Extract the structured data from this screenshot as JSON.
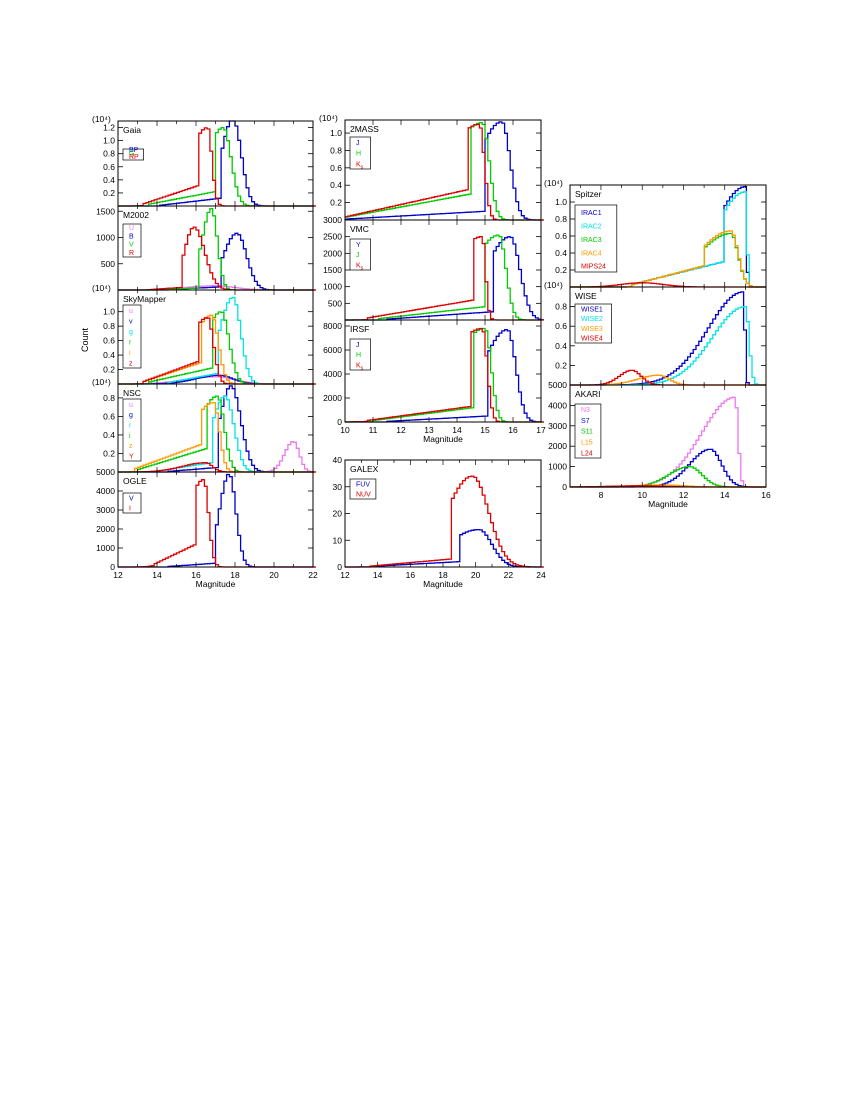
{
  "figure": {
    "ylabel_shared": "Count",
    "xlabel": "Magnitude"
  },
  "chart_data": [
    {
      "type": "line",
      "title": "Gaia",
      "multiplier": "(10⁴)",
      "xlim": [
        12,
        22
      ],
      "ylim": [
        0,
        1.3
      ],
      "yticks": [
        "0.2",
        "0.4",
        "0.6",
        "0.8",
        "1.0",
        "1.2"
      ],
      "ytick_values": [
        0.2,
        0.4,
        0.6,
        0.8,
        1.0,
        1.2
      ],
      "series": [
        {
          "name": "BP",
          "color": "#0000cc",
          "peak": 17.9,
          "peak_val": 1.33,
          "sl": 0.6,
          "sr": 0.42,
          "floor": 0.12,
          "ext": [
            14.2,
            17.3
          ]
        },
        {
          "name": "G",
          "color": "#00cc00",
          "peak": 17.4,
          "peak_val": 1.2,
          "sl": 0.9,
          "sr": 0.4,
          "floor": 0.22,
          "ext": [
            13.5,
            17.0
          ]
        },
        {
          "name": "RP",
          "color": "#dd0000",
          "peak": 16.6,
          "peak_val": 1.2,
          "sl": 1.0,
          "sr": 0.22,
          "floor": 0.32,
          "ext": [
            13.3,
            16.2
          ]
        }
      ]
    },
    {
      "type": "line",
      "title": "M2002",
      "multiplier": "",
      "xlim": [
        12,
        22
      ],
      "ylim": [
        0,
        1600
      ],
      "yticks": [
        "500",
        "1000",
        "1500"
      ],
      "ytick_values": [
        500,
        1000,
        1500
      ],
      "series": [
        {
          "name": "U",
          "color": "#ee77ee",
          "peak": 17.0,
          "peak_val": 80,
          "sl": 1.5,
          "sr": 1.0,
          "floor": 0,
          "ext": [
            14,
            17
          ]
        },
        {
          "name": "B",
          "color": "#0000cc",
          "peak": 18.1,
          "peak_val": 1080,
          "sl": 0.7,
          "sr": 0.5,
          "floor": 60,
          "ext": [
            14.5,
            17.3
          ]
        },
        {
          "name": "V",
          "color": "#00cc00",
          "peak": 16.8,
          "peak_val": 1550,
          "sl": 0.5,
          "sr": 0.3,
          "floor": 40,
          "ext": [
            14,
            16.2
          ]
        },
        {
          "name": "R",
          "color": "#dd0000",
          "peak": 15.9,
          "peak_val": 1200,
          "sl": 0.5,
          "sr": 0.55,
          "floor": 50,
          "ext": [
            13.5,
            15.3
          ]
        }
      ]
    },
    {
      "type": "line",
      "title": "SkyMapper",
      "multiplier": "(10⁴)",
      "xlim": [
        12,
        22
      ],
      "ylim": [
        0,
        1.3
      ],
      "yticks": [
        "0.2",
        "0.4",
        "0.6",
        "0.8",
        "1.0"
      ],
      "ytick_values": [
        0.2,
        0.4,
        0.6,
        0.8,
        1.0
      ],
      "series": [
        {
          "name": "u",
          "color": "#ee77ee",
          "peak": 17.0,
          "peak_val": 0.1,
          "sl": 1.5,
          "sr": 1.0,
          "floor": 0,
          "ext": [
            14,
            17
          ]
        },
        {
          "name": "v",
          "color": "#0000cc",
          "peak": 17.2,
          "peak_val": 0.12,
          "sl": 1.2,
          "sr": 0.7,
          "floor": 0,
          "ext": [
            14,
            17
          ]
        },
        {
          "name": "g",
          "color": "#00e5e5",
          "peak": 17.9,
          "peak_val": 1.2,
          "sl": 0.7,
          "sr": 0.4,
          "floor": 0.15,
          "ext": [
            14.5,
            17.2
          ]
        },
        {
          "name": "r",
          "color": "#00cc00",
          "peak": 17.3,
          "peak_val": 1.0,
          "sl": 0.9,
          "sr": 0.4,
          "floor": 0.22,
          "ext": [
            13.5,
            16.8
          ]
        },
        {
          "name": "i",
          "color": "#ff9900",
          "peak": 16.8,
          "peak_val": 0.95,
          "sl": 1.0,
          "sr": 0.35,
          "floor": 0.3,
          "ext": [
            13.3,
            16.3
          ]
        },
        {
          "name": "z",
          "color": "#dd0000",
          "peak": 16.6,
          "peak_val": 0.92,
          "sl": 1.0,
          "sr": 0.3,
          "floor": 0.32,
          "ext": [
            13.3,
            16.2
          ]
        }
      ]
    },
    {
      "type": "line",
      "title": "NSC",
      "multiplier": "(10⁴)",
      "xlim": [
        12,
        22
      ],
      "ylim": [
        0,
        0.95
      ],
      "yticks": [
        "0.2",
        "0.4",
        "0.6",
        "0.8"
      ],
      "ytick_values": [
        0.2,
        0.4,
        0.6,
        0.8
      ],
      "series": [
        {
          "name": "u",
          "color": "#ee77ee",
          "peak": 21.0,
          "peak_val": 0.33,
          "sl": 0.45,
          "sr": 0.3,
          "floor": 0,
          "ext": [
            20,
            20
          ]
        },
        {
          "name": "g",
          "color": "#0000cc",
          "peak": 17.8,
          "peak_val": 0.93,
          "sl": 0.6,
          "sr": 0.5,
          "floor": 0.05,
          "ext": [
            14.5,
            17.2
          ]
        },
        {
          "name": "r",
          "color": "#00e5e5",
          "peak": 17.5,
          "peak_val": 0.82,
          "sl": 0.7,
          "sr": 0.45,
          "floor": 0.1,
          "ext": [
            14.0,
            16.8
          ]
        },
        {
          "name": "i",
          "color": "#00cc00",
          "peak": 17.1,
          "peak_val": 0.82,
          "sl": 1.0,
          "sr": 0.35,
          "floor": 0.25,
          "ext": [
            13.0,
            16.5
          ]
        },
        {
          "name": "z",
          "color": "#ff9900",
          "peak": 16.9,
          "peak_val": 0.75,
          "sl": 1.2,
          "sr": 0.3,
          "floor": 0.3,
          "ext": [
            12.8,
            16.3
          ]
        },
        {
          "name": "Y",
          "color": "#dd0000",
          "peak": 16.5,
          "peak_val": 0.1,
          "sl": 1.2,
          "sr": 0.35,
          "floor": 0,
          "ext": [
            14,
            16
          ]
        }
      ]
    },
    {
      "type": "line",
      "title": "OGLE",
      "multiplier": "",
      "xlim": [
        12,
        22
      ],
      "ylim": [
        0,
        5000
      ],
      "yticks": [
        "0",
        "1000",
        "2000",
        "3000",
        "4000",
        "5000"
      ],
      "ytick_values": [
        0,
        1000,
        2000,
        3000,
        4000,
        5000
      ],
      "xticks": [
        "12",
        "14",
        "16",
        "18",
        "20",
        "22"
      ],
      "xtick_values": [
        12,
        14,
        16,
        18,
        20,
        22
      ],
      "series": [
        {
          "name": "V",
          "color": "#0000cc",
          "peak": 17.7,
          "peak_val": 4900,
          "sl": 0.5,
          "sr": 0.35,
          "floor": 200,
          "ext": [
            14.5,
            17.0
          ]
        },
        {
          "name": "I",
          "color": "#dd0000",
          "peak": 16.4,
          "peak_val": 4600,
          "sl": 0.9,
          "sr": 0.25,
          "floor": 1200,
          "ext": [
            13.8,
            16.0
          ]
        }
      ]
    },
    {
      "type": "line",
      "title": "2MASS",
      "multiplier": "(10⁴)",
      "xlim": [
        10,
        17
      ],
      "ylim": [
        0,
        1.15
      ],
      "yticks": [
        "0.2",
        "0.4",
        "0.6",
        "0.8",
        "1.0"
      ],
      "ytick_values": [
        0.2,
        0.4,
        0.6,
        0.8,
        1.0
      ],
      "series": [
        {
          "name": "J",
          "color": "#0000cc",
          "peak": 15.6,
          "peak_val": 1.13,
          "sl": 0.9,
          "sr": 0.3,
          "floor": 0.1,
          "ext": [
            10,
            15.0
          ]
        },
        {
          "name": "H",
          "color": "#00cc00",
          "peak": 14.9,
          "peak_val": 1.12,
          "sl": 1.2,
          "sr": 0.25,
          "floor": 0.3,
          "ext": [
            10,
            14.5
          ]
        },
        {
          "name": "K_s",
          "color": "#dd0000",
          "peak": 14.8,
          "peak_val": 1.1,
          "sl": 1.3,
          "sr": 0.18,
          "floor": 0.35,
          "ext": [
            10,
            14.4
          ]
        }
      ]
    },
    {
      "type": "line",
      "title": "VMC",
      "multiplier": "",
      "xlim": [
        10,
        17
      ],
      "ylim": [
        0,
        3000
      ],
      "yticks": [
        "500",
        "1000",
        "1500",
        "2000",
        "2500",
        "3000"
      ],
      "ytick_values": [
        500,
        1000,
        1500,
        2000,
        2500,
        3000
      ],
      "series": [
        {
          "name": "Y",
          "color": "#0000cc",
          "peak": 15.9,
          "peak_val": 2500,
          "sl": 0.9,
          "sr": 0.35,
          "floor": 250,
          "ext": [
            11.5,
            15.3
          ]
        },
        {
          "name": "J",
          "color": "#00cc00",
          "peak": 15.5,
          "peak_val": 2550,
          "sl": 1.0,
          "sr": 0.25,
          "floor": 400,
          "ext": [
            11.2,
            15.0
          ]
        },
        {
          "name": "K_s",
          "color": "#dd0000",
          "peak": 14.9,
          "peak_val": 2500,
          "sl": 1.2,
          "sr": 0.12,
          "floor": 600,
          "ext": [
            10.8,
            14.6
          ]
        }
      ]
    },
    {
      "type": "line",
      "title": "IRSF",
      "multiplier": "",
      "xlim": [
        10,
        17
      ],
      "ylim": [
        0,
        8500
      ],
      "yticks": [
        "0",
        "2000",
        "4000",
        "6000",
        "8000"
      ],
      "ytick_values": [
        0,
        2000,
        4000,
        6000,
        8000
      ],
      "xticks": [
        "10",
        "11",
        "12",
        "13",
        "14",
        "15",
        "16",
        "17"
      ],
      "xtick_values": [
        10,
        11,
        12,
        13,
        14,
        15,
        16,
        17
      ],
      "series": [
        {
          "name": "J",
          "color": "#0000cc",
          "peak": 15.8,
          "peak_val": 7700,
          "sl": 0.9,
          "sr": 0.3,
          "floor": 500,
          "ext": [
            11.5,
            15.1
          ]
        },
        {
          "name": "H",
          "color": "#00cc00",
          "peak": 15.0,
          "peak_val": 7800,
          "sl": 1.2,
          "sr": 0.22,
          "floor": 1200,
          "ext": [
            11.0,
            14.6
          ]
        },
        {
          "name": "K_s",
          "color": "#dd0000",
          "peak": 14.9,
          "peak_val": 7800,
          "sl": 1.3,
          "sr": 0.18,
          "floor": 1300,
          "ext": [
            10.8,
            14.5
          ]
        }
      ]
    },
    {
      "type": "line",
      "title": "GALEX",
      "multiplier": "",
      "xlim": [
        12,
        24
      ],
      "ylim": [
        0,
        40
      ],
      "yticks": [
        "0",
        "10",
        "20",
        "30",
        "40"
      ],
      "ytick_values": [
        0,
        10,
        20,
        30,
        40
      ],
      "xticks": [
        "12",
        "14",
        "16",
        "18",
        "20",
        "22",
        "24"
      ],
      "xtick_values": [
        12,
        14,
        16,
        18,
        20,
        22,
        24
      ],
      "series": [
        {
          "name": "FUV",
          "color": "#0000cc",
          "peak": 20.2,
          "peak_val": 14,
          "sl": 2.0,
          "sr": 0.8,
          "floor": 2,
          "ext": [
            13.5,
            19.0
          ]
        },
        {
          "name": "NUV",
          "color": "#dd0000",
          "peak": 19.8,
          "peak_val": 34,
          "sl": 1.6,
          "sr": 1.0,
          "floor": 3,
          "ext": [
            13.5,
            18.5
          ]
        }
      ]
    },
    {
      "type": "line",
      "title": "Spitzer",
      "multiplier": "(10⁴)",
      "xlim": [
        6.5,
        16
      ],
      "ylim": [
        0,
        1.2
      ],
      "yticks": [
        "0.2",
        "0.4",
        "0.6",
        "0.8",
        "1.0"
      ],
      "ytick_values": [
        0.2,
        0.4,
        0.6,
        0.8,
        1.0
      ],
      "series": [
        {
          "name": "IRAC1",
          "color": "#0000cc",
          "peak": 15.0,
          "peak_val": 1.18,
          "sl": 1.5,
          "sr": 0.06,
          "floor": 0.3,
          "ext": [
            9.5,
            14.0
          ]
        },
        {
          "name": "IRAC2",
          "color": "#00e5e5",
          "peak": 15.0,
          "peak_val": 1.12,
          "sl": 1.5,
          "sr": 0.08,
          "floor": 0.3,
          "ext": [
            9.5,
            14.0
          ]
        },
        {
          "name": "IRAC3",
          "color": "#00cc00",
          "peak": 14.3,
          "peak_val": 0.63,
          "sl": 1.6,
          "sr": 0.35,
          "floor": 0.25,
          "ext": [
            9.5,
            13.0
          ]
        },
        {
          "name": "IRAC4",
          "color": "#ff9900",
          "peak": 14.3,
          "peak_val": 0.66,
          "sl": 1.6,
          "sr": 0.35,
          "floor": 0.25,
          "ext": [
            9.5,
            13.0
          ]
        },
        {
          "name": "MIPS24",
          "color": "#dd0000",
          "peak": 10.0,
          "peak_val": 0.05,
          "sl": 1.0,
          "sr": 1.0,
          "floor": 0,
          "ext": [
            9,
            9
          ]
        }
      ]
    },
    {
      "type": "line",
      "title": "WISE",
      "multiplier": "(10⁴)",
      "xlim": [
        6.5,
        16
      ],
      "ylim": [
        0,
        1.0
      ],
      "yticks": [
        "0.2",
        "0.4",
        "0.6",
        "0.8"
      ],
      "ytick_values": [
        0.2,
        0.4,
        0.6,
        0.8
      ],
      "series": [
        {
          "name": "WISE1",
          "color": "#0000cc",
          "peak": 14.9,
          "peak_val": 0.95,
          "sl": 1.7,
          "sr": 0.08,
          "floor": 0,
          "ext": [
            12,
            12
          ]
        },
        {
          "name": "WISE2",
          "color": "#00e5e5",
          "peak": 15.0,
          "peak_val": 0.8,
          "sl": 1.6,
          "sr": 0.18,
          "floor": 0,
          "ext": [
            12,
            12
          ]
        },
        {
          "name": "WISE3",
          "color": "#ff9900",
          "peak": 10.8,
          "peak_val": 0.1,
          "sl": 1.0,
          "sr": 0.5,
          "floor": 0,
          "ext": [
            9,
            9
          ]
        },
        {
          "name": "WISE4",
          "color": "#dd0000",
          "peak": 9.5,
          "peak_val": 0.15,
          "sl": 0.6,
          "sr": 0.45,
          "floor": 0,
          "ext": [
            8,
            8
          ]
        }
      ]
    },
    {
      "type": "line",
      "title": "AKARI",
      "multiplier": "",
      "xlim": [
        6.5,
        16
      ],
      "ylim": [
        0,
        5000
      ],
      "yticks": [
        "0",
        "1000",
        "2000",
        "3000",
        "4000",
        "5000"
      ],
      "ytick_values": [
        0,
        1000,
        2000,
        3000,
        4000,
        5000
      ],
      "xticks": [
        "8",
        "10",
        "12",
        "14",
        "16"
      ],
      "xtick_values": [
        8,
        10,
        12,
        14,
        16
      ],
      "series": [
        {
          "name": "N3",
          "color": "#ee77ee",
          "peak": 14.5,
          "peak_val": 4400,
          "sl": 1.6,
          "sr": 0.15,
          "floor": 0,
          "ext": [
            11,
            11
          ]
        },
        {
          "name": "S7",
          "color": "#0000cc",
          "peak": 13.3,
          "peak_val": 1850,
          "sl": 1.0,
          "sr": 0.55,
          "floor": 0,
          "ext": [
            10,
            10
          ]
        },
        {
          "name": "S11",
          "color": "#00cc00",
          "peak": 12.3,
          "peak_val": 1000,
          "sl": 1.0,
          "sr": 0.6,
          "floor": 0,
          "ext": [
            10,
            10
          ]
        },
        {
          "name": "L15",
          "color": "#ff9900",
          "peak": 11.0,
          "peak_val": 100,
          "sl": 1.5,
          "sr": 1.0,
          "floor": 0,
          "ext": [
            9,
            9
          ]
        },
        {
          "name": "L24",
          "color": "#dd0000",
          "peak": 10.0,
          "peak_val": 60,
          "sl": 1.5,
          "sr": 1.0,
          "floor": 0,
          "ext": [
            9,
            9
          ]
        }
      ]
    }
  ]
}
